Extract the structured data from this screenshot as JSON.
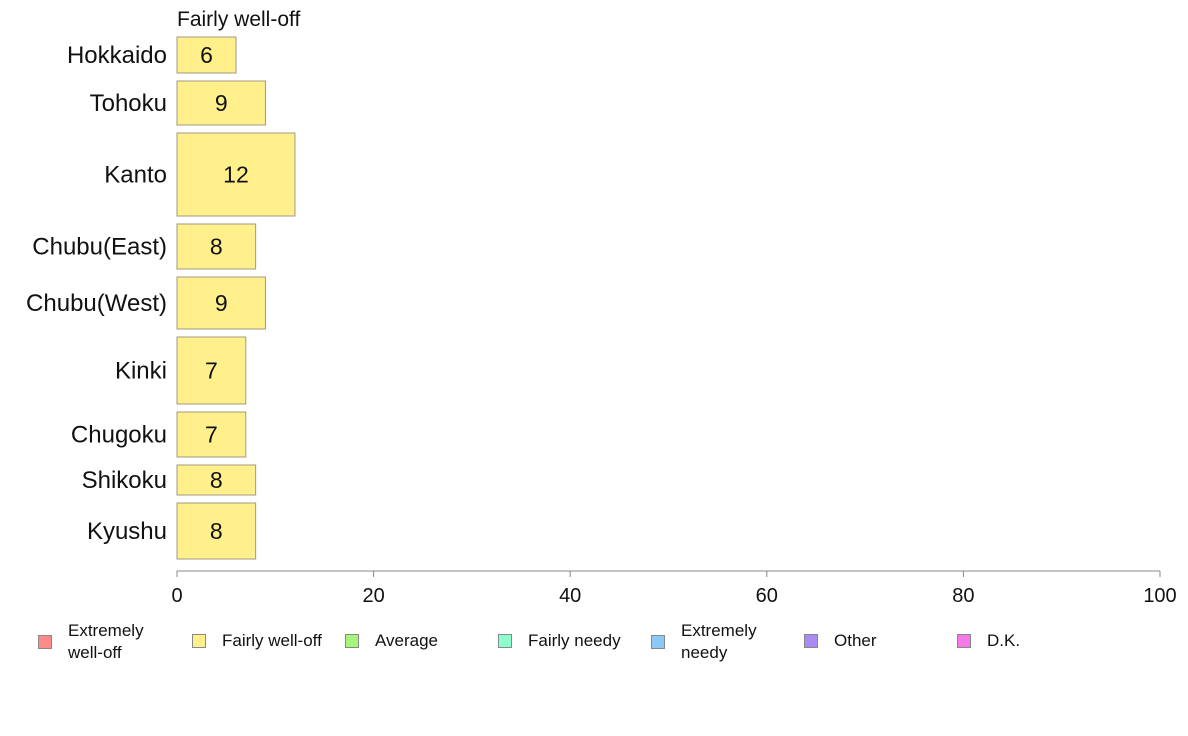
{
  "chart_data": {
    "type": "bar",
    "orientation": "horizontal",
    "series_title": "Fairly well-off",
    "categories": [
      "Hokkaido",
      "Tohoku",
      "Kanto",
      "Chubu(East)",
      "Chubu(West)",
      "Kinki",
      "Chugoku",
      "Shikoku",
      "Kyushu"
    ],
    "values": [
      6,
      9,
      12,
      8,
      9,
      7,
      7,
      8,
      8
    ],
    "data_labels": [
      "6",
      "9",
      "12",
      "8",
      "9",
      "7",
      "7",
      "8",
      "8"
    ],
    "xlim": [
      0,
      100
    ],
    "xticks": [
      0,
      20,
      40,
      60,
      80,
      100
    ],
    "xtick_labels": [
      "0",
      "20",
      "40",
      "60",
      "80",
      "100"
    ],
    "bar_color": "#fff08c",
    "bar_edge": "#a09a80",
    "grid": false,
    "legend_position": "bottom",
    "legend": [
      {
        "label": "Extremely well-off",
        "color": "#ff8a8a"
      },
      {
        "label": "Fairly well-off",
        "color": "#fff08c"
      },
      {
        "label": "Average",
        "color": "#a6f57a"
      },
      {
        "label": "Fairly needy",
        "color": "#8cffcf"
      },
      {
        "label": "Extremely needy",
        "color": "#8cc8f5"
      },
      {
        "label": "Other",
        "color": "#a98cf0"
      },
      {
        "label": "D.K.",
        "color": "#f57ae8"
      }
    ]
  }
}
